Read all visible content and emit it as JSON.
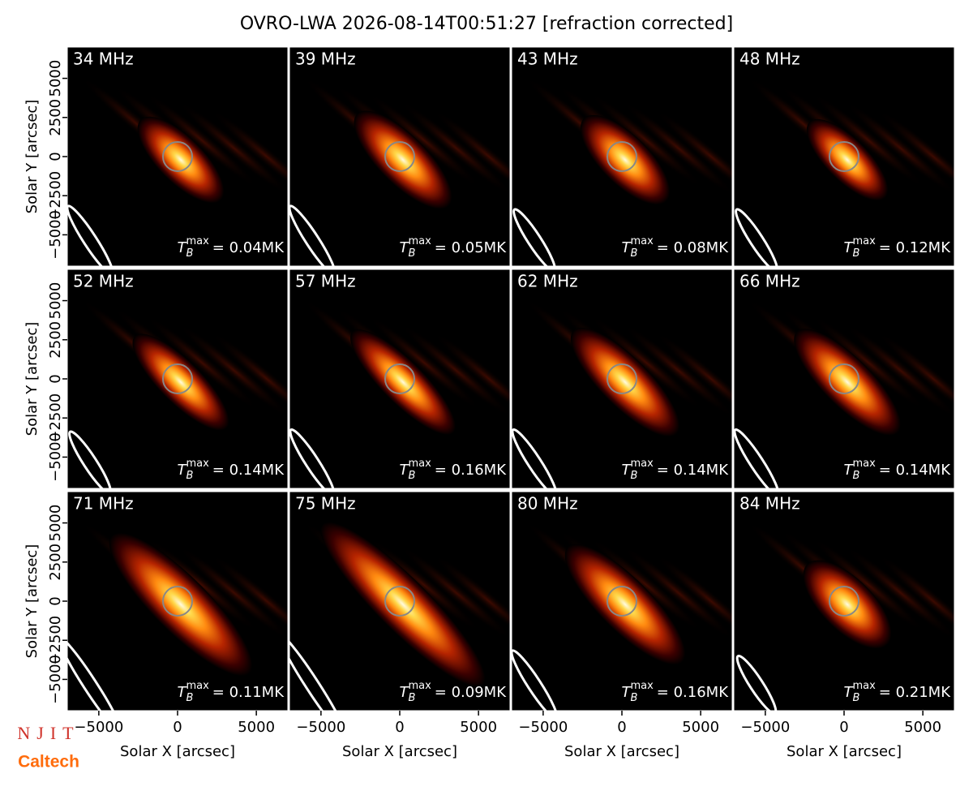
{
  "title": "OVRO-LWA 2026-08-14T00:51:27 [refraction corrected]",
  "logos": [
    "NJIT",
    "Caltech"
  ],
  "chart_data": [
    {
      "type": "image",
      "title": "34 MHz",
      "annotation": {
        "symbol": "T",
        "sub": "B",
        "sup": "max",
        "text": "= 0.04MK"
      },
      "xlim": [
        -7000,
        7000
      ],
      "ylim": [
        -7000,
        7000
      ],
      "ylabel": "Solar Y [arcsec]",
      "yticks": [
        {
          "value": -5000,
          "label": "−5000"
        },
        {
          "value": -2500,
          "label": "−2500"
        },
        0,
        2500,
        5000
      ]
    },
    {
      "type": "image",
      "title": "39 MHz",
      "annotation": {
        "symbol": "T",
        "sub": "B",
        "sup": "max",
        "text": "= 0.05MK"
      },
      "xlim": [
        -7000,
        7000
      ],
      "ylim": [
        -7000,
        7000
      ]
    },
    {
      "type": "image",
      "title": "43 MHz",
      "annotation": {
        "symbol": "T",
        "sub": "B",
        "sup": "max",
        "text": "= 0.08MK"
      },
      "xlim": [
        -7000,
        7000
      ],
      "ylim": [
        -7000,
        7000
      ]
    },
    {
      "type": "image",
      "title": "48 MHz",
      "annotation": {
        "symbol": "T",
        "sub": "B",
        "sup": "max",
        "text": "= 0.12MK"
      },
      "xlim": [
        -7000,
        7000
      ],
      "ylim": [
        -7000,
        7000
      ]
    },
    {
      "type": "image",
      "title": "52 MHz",
      "annotation": {
        "symbol": "T",
        "sub": "B",
        "sup": "max",
        "text": "= 0.14MK"
      },
      "xlim": [
        -7000,
        7000
      ],
      "ylim": [
        -7000,
        7000
      ],
      "ylabel": "Solar Y [arcsec]",
      "yticks": [
        {
          "value": -5000,
          "label": "−5000"
        },
        {
          "value": -2500,
          "label": "−2500"
        },
        0,
        2500,
        5000
      ]
    },
    {
      "type": "image",
      "title": "57 MHz",
      "annotation": {
        "symbol": "T",
        "sub": "B",
        "sup": "max",
        "text": "= 0.16MK"
      },
      "xlim": [
        -7000,
        7000
      ],
      "ylim": [
        -7000,
        7000
      ]
    },
    {
      "type": "image",
      "title": "62 MHz",
      "annotation": {
        "symbol": "T",
        "sub": "B",
        "sup": "max",
        "text": "= 0.14MK"
      },
      "xlim": [
        -7000,
        7000
      ],
      "ylim": [
        -7000,
        7000
      ]
    },
    {
      "type": "image",
      "title": "66 MHz",
      "annotation": {
        "symbol": "T",
        "sub": "B",
        "sup": "max",
        "text": "= 0.14MK"
      },
      "xlim": [
        -7000,
        7000
      ],
      "ylim": [
        -7000,
        7000
      ]
    },
    {
      "type": "image",
      "title": "71 MHz",
      "annotation": {
        "symbol": "T",
        "sub": "B",
        "sup": "max",
        "text": "= 0.11MK"
      },
      "xlim": [
        -7000,
        7000
      ],
      "ylim": [
        -7000,
        7000
      ],
      "ylabel": "Solar Y [arcsec]",
      "yticks": [
        {
          "value": -5000,
          "label": "−5000"
        },
        {
          "value": -2500,
          "label": "−2500"
        },
        0,
        2500,
        5000
      ],
      "xlabel": "Solar X [arcsec]",
      "xticks": [
        {
          "value": -5000,
          "label": "−5000"
        },
        0,
        5000
      ]
    },
    {
      "type": "image",
      "title": "75 MHz",
      "annotation": {
        "symbol": "T",
        "sub": "B",
        "sup": "max",
        "text": "= 0.09MK"
      },
      "xlim": [
        -7000,
        7000
      ],
      "ylim": [
        -7000,
        7000
      ],
      "xlabel": "Solar X [arcsec]",
      "xticks": [
        {
          "value": -5000,
          "label": "−5000"
        },
        0,
        5000
      ]
    },
    {
      "type": "image",
      "title": "80 MHz",
      "annotation": {
        "symbol": "T",
        "sub": "B",
        "sup": "max",
        "text": "= 0.16MK"
      },
      "xlim": [
        -7000,
        7000
      ],
      "ylim": [
        -7000,
        7000
      ],
      "xlabel": "Solar X [arcsec]",
      "xticks": [
        {
          "value": -5000,
          "label": "−5000"
        },
        0,
        5000
      ]
    },
    {
      "type": "image",
      "title": "84 MHz",
      "annotation": {
        "symbol": "T",
        "sub": "B",
        "sup": "max",
        "text": "= 0.21MK"
      },
      "xlim": [
        -7000,
        7000
      ],
      "ylim": [
        -7000,
        7000
      ],
      "xlabel": "Solar X [arcsec]",
      "xticks": [
        {
          "value": -5000,
          "label": "−5000"
        },
        0,
        5000
      ]
    }
  ]
}
